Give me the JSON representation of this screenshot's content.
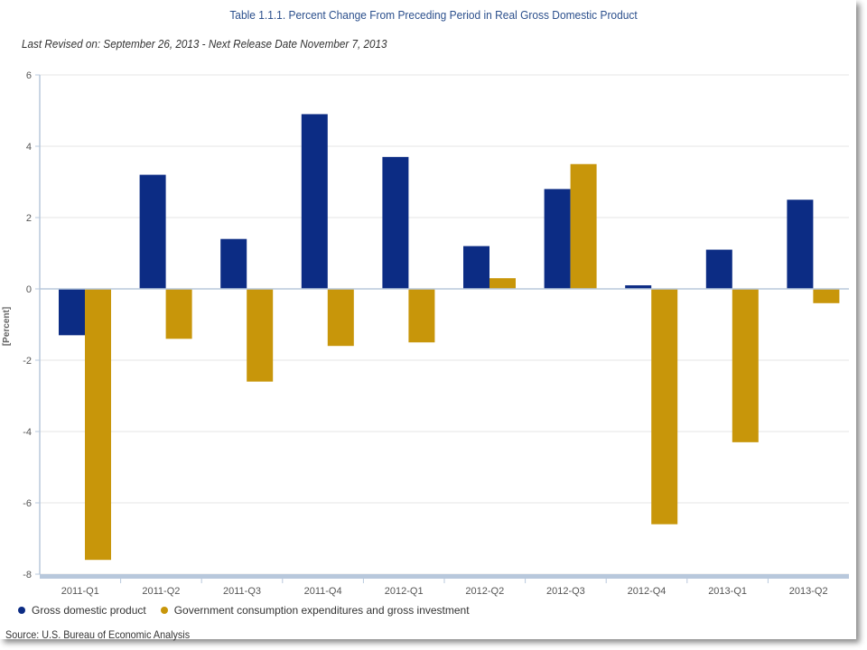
{
  "header": {
    "title": "Table 1.1.1. Percent Change From Preceding Period in Real Gross Domestic Product",
    "subtitle": "Last Revised on: September 26, 2013 - Next Release Date November 7, 2013"
  },
  "footer": {
    "source": "Source: U.S. Bureau of Economic Analysis"
  },
  "colors": {
    "gdp": "#0c2c84",
    "government": "#c8960a",
    "axis": "#b8c8dc",
    "grid": "#e6e6e6",
    "title": "#2b4f8c"
  },
  "chart_data": {
    "type": "bar",
    "title": "Table 1.1.1. Percent Change From Preceding Period in Real Gross Domestic Product",
    "ylabel": "[Percent]",
    "xlabel": "",
    "ylim": [
      -8,
      6
    ],
    "yticks": [
      6,
      4,
      2,
      0,
      -2,
      -4,
      -6,
      -8
    ],
    "grid": true,
    "legend_position": "bottom-left",
    "categories": [
      "2011-Q1",
      "2011-Q2",
      "2011-Q3",
      "2011-Q4",
      "2012-Q1",
      "2012-Q2",
      "2012-Q3",
      "2012-Q4",
      "2013-Q1",
      "2013-Q2"
    ],
    "series": [
      {
        "name": "Gross domestic product",
        "values": [
          -1.3,
          3.2,
          1.4,
          4.9,
          3.7,
          1.2,
          2.8,
          0.1,
          1.1,
          2.5
        ]
      },
      {
        "name": "Government consumption expenditures and gross investment",
        "values": [
          -7.6,
          -1.4,
          -2.6,
          -1.6,
          -1.5,
          0.3,
          3.5,
          -6.6,
          -4.3,
          -0.4
        ]
      }
    ]
  }
}
